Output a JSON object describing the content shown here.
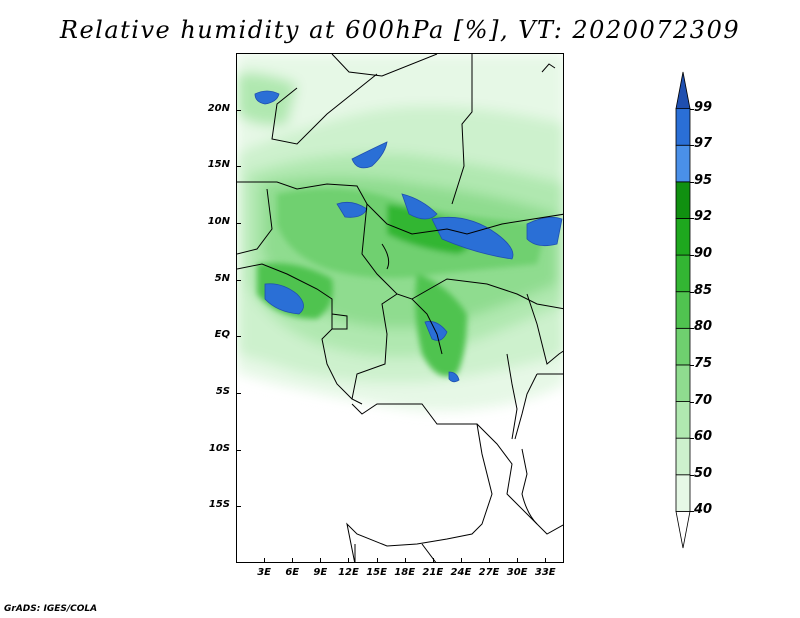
{
  "title": "Relative humidity at 600hPa [%], VT: 2020072309",
  "credit": "GrADS: IGES/COLA",
  "map": {
    "lon_range": [
      0,
      35
    ],
    "lat_range": [
      -20,
      25
    ],
    "x_ticks": [
      "3E",
      "6E",
      "9E",
      "12E",
      "15E",
      "18E",
      "21E",
      "24E",
      "27E",
      "30E",
      "33E"
    ],
    "x_tick_lons": [
      3,
      6,
      9,
      12,
      15,
      18,
      21,
      24,
      27,
      30,
      33
    ],
    "y_ticks": [
      "20N",
      "15N",
      "10N",
      "5N",
      "EQ",
      "5S",
      "10S",
      "15S"
    ],
    "y_tick_lats": [
      20,
      15,
      10,
      5,
      0,
      -5,
      -10,
      -15
    ]
  },
  "colorbar": {
    "levels": [
      "40",
      "50",
      "60",
      "70",
      "75",
      "80",
      "85",
      "90",
      "92",
      "95",
      "97",
      "99"
    ],
    "colors": [
      "#ffffff",
      "#e6f8e6",
      "#cdf1cd",
      "#b0e8b0",
      "#8fdc8f",
      "#6fd06f",
      "#50c350",
      "#33b633",
      "#1ea81e",
      "#109010",
      "#4a90e8",
      "#2a6fd6",
      "#1f4fb0"
    ]
  }
}
